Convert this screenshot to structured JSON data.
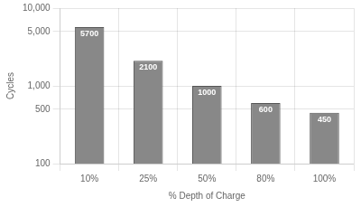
{
  "chart_data": {
    "type": "bar",
    "categories": [
      "10%",
      "25%",
      "50%",
      "80%",
      "100%"
    ],
    "values": [
      5700,
      2100,
      1000,
      600,
      450
    ],
    "color": "#888888",
    "xlabel": "% Depth of Charge",
    "ylabel": "Cycles",
    "log": "y",
    "ylim": [
      100,
      10000
    ],
    "yticks": [
      100,
      500,
      {
        "value": 1000,
        "label": "1,000"
      },
      {
        "value": 5000,
        "label": "5,000"
      },
      {
        "value": 10000,
        "label": "10,000"
      }
    ],
    "grid": true,
    "data_labels": true
  }
}
